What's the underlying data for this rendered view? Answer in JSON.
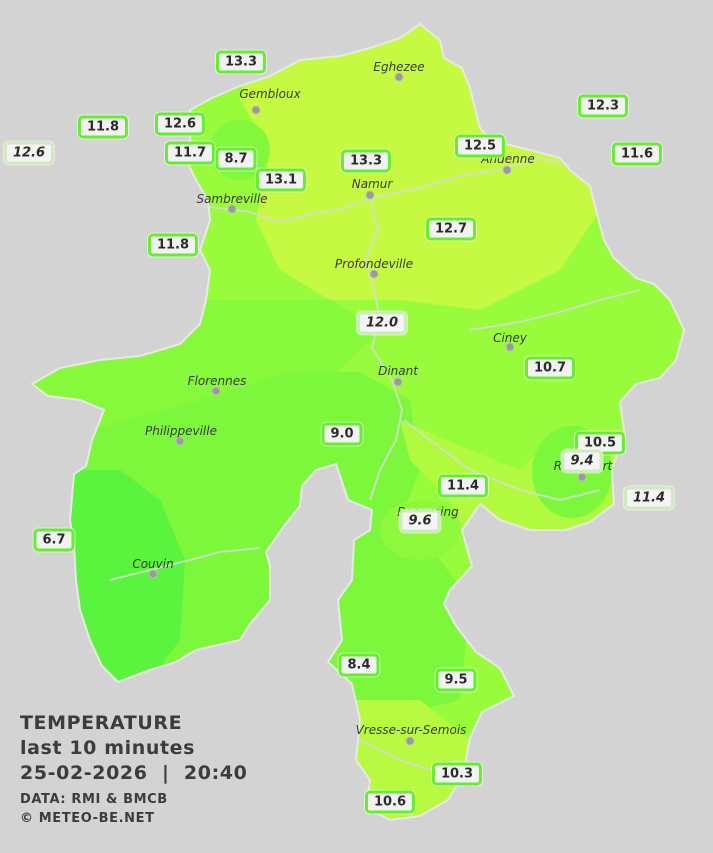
{
  "legend": {
    "title": "TEMPERATURE",
    "subtitle": "last 10 minutes",
    "datetime": "25-02-2026  |  20:40",
    "source": "DATA: RMI & BMCB",
    "copyright": "© METEO-BE.NET"
  },
  "colors": {
    "background": "#d3d3d3",
    "zone_light": "#c6fa42",
    "zone_mid": "#98fb3c",
    "zone_mid2": "#7cf73c",
    "zone_cool": "#5af33e",
    "rivers": "#d6dcd0",
    "badge_border": "#64ef2e"
  },
  "cities": [
    {
      "id": "gembloux",
      "name": "Gembloux"
    },
    {
      "id": "eghezee",
      "name": "Eghezee"
    },
    {
      "id": "andenne",
      "name": "Andenne"
    },
    {
      "id": "sambreville",
      "name": "Sambreville"
    },
    {
      "id": "namur",
      "name": "Namur"
    },
    {
      "id": "profondeville",
      "name": "Profondeville"
    },
    {
      "id": "ciney",
      "name": "Ciney"
    },
    {
      "id": "dinant",
      "name": "Dinant"
    },
    {
      "id": "florennes",
      "name": "Florennes"
    },
    {
      "id": "philippeville",
      "name": "Philippeville"
    },
    {
      "id": "rochefort",
      "name": "Rochefort"
    },
    {
      "id": "beauraing",
      "name": "Beauraing"
    },
    {
      "id": "couvin",
      "name": "Couvin"
    },
    {
      "id": "vresse",
      "name": "Vresse-sur-Semois"
    }
  ],
  "readings": [
    {
      "value": "13.3"
    },
    {
      "value": "12.6"
    },
    {
      "value": "11.8"
    },
    {
      "value": "12.6"
    },
    {
      "value": "11.7"
    },
    {
      "value": "8.7"
    },
    {
      "value": "13.1"
    },
    {
      "value": "13.3"
    },
    {
      "value": "12.5"
    },
    {
      "value": "12.3"
    },
    {
      "value": "11.6"
    },
    {
      "value": "11.8"
    },
    {
      "value": "12.7"
    },
    {
      "value": "12.0"
    },
    {
      "value": "10.7"
    },
    {
      "value": "9.0"
    },
    {
      "value": "10.5"
    },
    {
      "value": "9.4"
    },
    {
      "value": "11.4"
    },
    {
      "value": "11.4"
    },
    {
      "value": "9.6"
    },
    {
      "value": "6.7"
    },
    {
      "value": "8.4"
    },
    {
      "value": "9.5"
    },
    {
      "value": "10.3"
    },
    {
      "value": "10.6"
    }
  ]
}
